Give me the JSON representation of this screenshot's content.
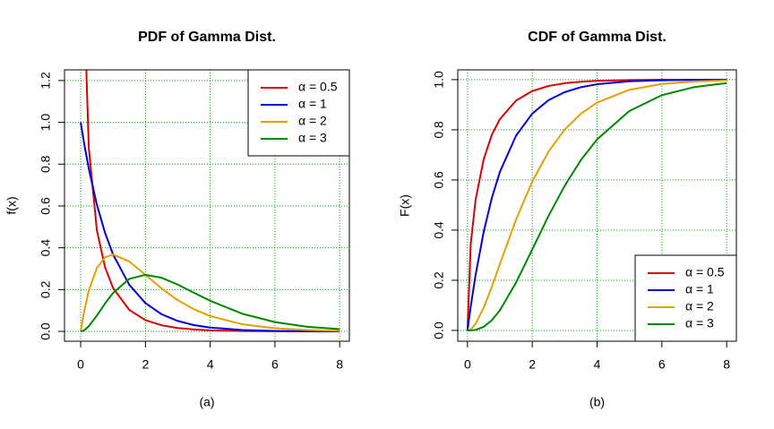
{
  "chart_data": [
    {
      "type": "line",
      "title": "PDF of Gamma Dist.",
      "x_label": "(a)",
      "y_label": "f(x)",
      "x": [
        0,
        0.1,
        0.25,
        0.5,
        0.75,
        1,
        1.5,
        2,
        2.5,
        3,
        3.5,
        4,
        5,
        6,
        7,
        8
      ],
      "series": [
        {
          "name": "α = 0.5",
          "color": "#dd0000",
          "values": [
            null,
            1.615,
            0.8788,
            0.4839,
            0.3077,
            0.2076,
            0.1028,
            0.054,
            0.0293,
            0.0162,
            0.0091,
            0.0052,
            0.0017,
            0.00057,
            0.00019,
            7e-05
          ]
        },
        {
          "name": "α = 1",
          "color": "#0000dd",
          "values": [
            1,
            0.9048,
            0.7788,
            0.6065,
            0.4724,
            0.3679,
            0.2231,
            0.1353,
            0.0821,
            0.0498,
            0.0302,
            0.0183,
            0.0067,
            0.0025,
            0.0009,
            0.0003
          ]
        },
        {
          "name": "α = 2",
          "color": "#e69f00",
          "values": [
            0,
            0.0905,
            0.1947,
            0.3033,
            0.3543,
            0.3679,
            0.3347,
            0.2707,
            0.2052,
            0.1494,
            0.1057,
            0.0733,
            0.0337,
            0.0149,
            0.0064,
            0.0027
          ]
        },
        {
          "name": "α = 3",
          "color": "#008800",
          "values": [
            0,
            0.0045,
            0.0243,
            0.0758,
            0.1329,
            0.1839,
            0.251,
            0.2707,
            0.2565,
            0.224,
            0.185,
            0.1465,
            0.0842,
            0.0446,
            0.0223,
            0.0107
          ]
        }
      ],
      "xlim": [
        -0.5,
        8.3
      ],
      "ylim": [
        -0.047,
        1.251
      ],
      "xticks": [
        0,
        2,
        4,
        6,
        8
      ],
      "yticks": [
        {
          "value": 0,
          "label": "0.0"
        },
        0.2,
        0.4,
        0.6,
        0.8,
        {
          "value": 1,
          "label": "1.0"
        },
        1.2
      ],
      "grid": true,
      "legend": "topright"
    },
    {
      "type": "line",
      "title": "CDF of Gamma Dist.",
      "x_label": "(b)",
      "y_label": "F(x)",
      "x": [
        0,
        0.1,
        0.25,
        0.5,
        0.75,
        1,
        1.5,
        2,
        2.5,
        3,
        3.5,
        4,
        5,
        6,
        7,
        8
      ],
      "series": [
        {
          "name": "α = 0.5",
          "color": "#dd0000",
          "values": [
            0,
            0.3453,
            0.5205,
            0.6827,
            0.7793,
            0.8427,
            0.9167,
            0.9545,
            0.9747,
            0.9857,
            0.9918,
            0.9953,
            0.9984,
            0.9995,
            0.9998,
            0.9999
          ]
        },
        {
          "name": "α = 1",
          "color": "#0000dd",
          "values": [
            0,
            0.0952,
            0.2212,
            0.3935,
            0.5276,
            0.6321,
            0.7769,
            0.8647,
            0.9179,
            0.9502,
            0.9698,
            0.9817,
            0.9933,
            0.9975,
            0.9991,
            0.9997
          ]
        },
        {
          "name": "α = 2",
          "color": "#e69f00",
          "values": [
            0,
            0.0047,
            0.0265,
            0.0902,
            0.1734,
            0.2642,
            0.4422,
            0.594,
            0.7127,
            0.8009,
            0.8641,
            0.9084,
            0.9596,
            0.9826,
            0.9927,
            0.997
          ]
        },
        {
          "name": "α = 3",
          "color": "#008800",
          "values": [
            0,
            0.0002,
            0.0022,
            0.0144,
            0.0405,
            0.0803,
            0.1912,
            0.3233,
            0.4562,
            0.5768,
            0.6791,
            0.7619,
            0.8753,
            0.938,
            0.9704,
            0.9862
          ]
        }
      ],
      "xlim": [
        -0.3,
        8.3
      ],
      "ylim": [
        -0.043,
        1.039
      ],
      "xticks": [
        0,
        2,
        4,
        6,
        8
      ],
      "yticks": [
        {
          "value": 0,
          "label": "0.0"
        },
        0.2,
        0.4,
        0.6,
        0.8,
        {
          "value": 1,
          "label": "1.0"
        }
      ],
      "grid": true,
      "legend": "bottomright"
    }
  ]
}
